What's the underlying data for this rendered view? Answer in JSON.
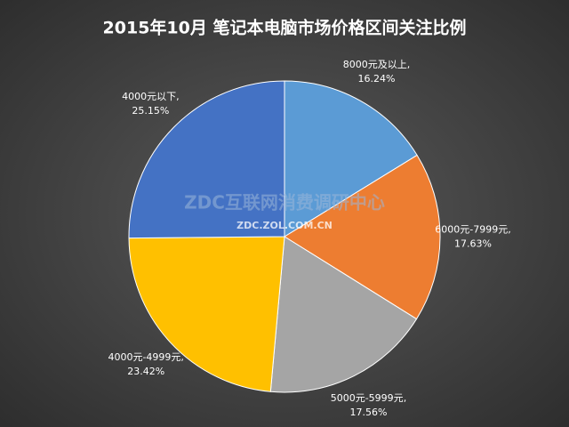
{
  "chart_data": {
    "type": "pie",
    "title": "2015年10月  笔记本电脑市场价格区间关注比例",
    "watermark": "ZDC互联网消费调研中心",
    "watermark_url": "ZDC.ZOL.COM.CN",
    "label_separator": ",",
    "categories": [
      "8000元及以上",
      "6000元-7999元",
      "5000元-5999元",
      "4000元-4999元",
      "4000元以下"
    ],
    "values": [
      16.24,
      17.63,
      17.56,
      23.42,
      25.15
    ],
    "value_labels": [
      "16.24%",
      "17.63%",
      "17.56%",
      "23.42%",
      "25.15%"
    ],
    "colors": [
      "#5b9bd5",
      "#ed7d31",
      "#a5a5a5",
      "#ffc000",
      "#4472c4"
    ]
  }
}
